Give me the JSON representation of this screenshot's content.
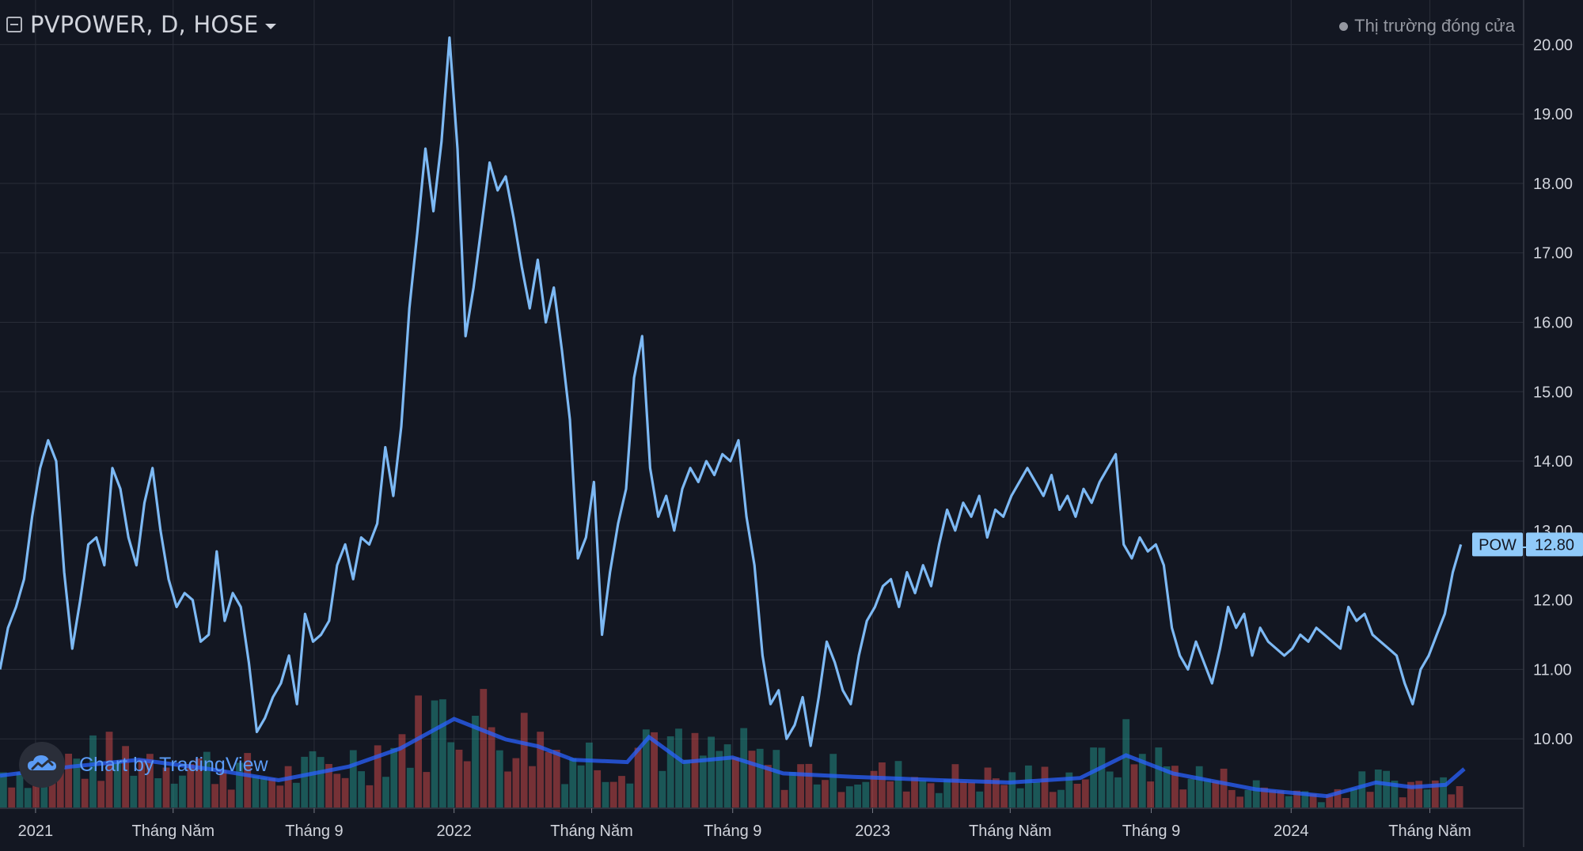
{
  "header": {
    "symbol_title": "PVPOWER, D, HOSE",
    "market_status": "Thị trường đóng cửa"
  },
  "watermark": {
    "text": "Chart by TradingView"
  },
  "colors": {
    "background": "#131722",
    "grid": "#2a2e39",
    "price_line": "#7db9f4",
    "volume_up": "#26a69a",
    "volume_down": "#ef5350",
    "volume_ma": "#2962ff",
    "label_bg": "#90caf9"
  },
  "icons": {
    "collapse": "collapse-square-icon",
    "dropdown": "caret-down-icon",
    "status": "status-dot-icon",
    "logo": "tradingview-cloud-icon"
  },
  "chart_data": {
    "type": "line",
    "title": "PVPOWER, D, HOSE",
    "xlabel": "",
    "ylabel": "",
    "x_range": [
      "2020-12-01",
      "2024-05-31"
    ],
    "ylim": [
      9.0,
      20.3
    ],
    "y_ticks": [
      "10.00",
      "11.00",
      "12.00",
      "13.00",
      "14.00",
      "15.00",
      "16.00",
      "17.00",
      "18.00",
      "19.00",
      "20.00"
    ],
    "x_ticks": [
      {
        "label": "2021",
        "date": "2021-01-01"
      },
      {
        "label": "Tháng Năm",
        "date": "2021-05-01"
      },
      {
        "label": "Tháng 9",
        "date": "2021-09-01"
      },
      {
        "label": "2022",
        "date": "2022-01-01"
      },
      {
        "label": "Tháng Năm",
        "date": "2022-05-01"
      },
      {
        "label": "Tháng 9",
        "date": "2022-09-01"
      },
      {
        "label": "2023",
        "date": "2023-01-01"
      },
      {
        "label": "Tháng Năm",
        "date": "2023-05-01"
      },
      {
        "label": "Tháng 9",
        "date": "2023-09-01"
      },
      {
        "label": "2024",
        "date": "2024-01-01"
      },
      {
        "label": "Tháng Năm",
        "date": "2024-05-01"
      }
    ],
    "grid": true,
    "price_label": {
      "symbol": "POW",
      "value": "12.80"
    },
    "series": [
      {
        "type": "line",
        "points": [
          [
            "2020-12-01",
            11.0
          ],
          [
            "2020-12-08",
            11.6
          ],
          [
            "2020-12-15",
            11.9
          ],
          [
            "2020-12-22",
            12.3
          ],
          [
            "2020-12-29",
            13.2
          ],
          [
            "2021-01-05",
            13.9
          ],
          [
            "2021-01-12",
            14.3
          ],
          [
            "2021-01-19",
            14.0
          ],
          [
            "2021-01-26",
            12.4
          ],
          [
            "2021-02-02",
            11.3
          ],
          [
            "2021-02-09",
            12.0
          ],
          [
            "2021-02-16",
            12.8
          ],
          [
            "2021-02-23",
            12.9
          ],
          [
            "2021-03-02",
            12.5
          ],
          [
            "2021-03-09",
            13.9
          ],
          [
            "2021-03-16",
            13.6
          ],
          [
            "2021-03-23",
            12.9
          ],
          [
            "2021-03-30",
            12.5
          ],
          [
            "2021-04-06",
            13.4
          ],
          [
            "2021-04-13",
            13.9
          ],
          [
            "2021-04-20",
            13.0
          ],
          [
            "2021-04-27",
            12.3
          ],
          [
            "2021-05-04",
            11.9
          ],
          [
            "2021-05-11",
            12.1
          ],
          [
            "2021-05-18",
            12.0
          ],
          [
            "2021-05-25",
            11.4
          ],
          [
            "2021-06-01",
            11.5
          ],
          [
            "2021-06-08",
            12.7
          ],
          [
            "2021-06-15",
            11.7
          ],
          [
            "2021-06-22",
            12.1
          ],
          [
            "2021-06-29",
            11.9
          ],
          [
            "2021-07-06",
            11.1
          ],
          [
            "2021-07-13",
            10.1
          ],
          [
            "2021-07-20",
            10.3
          ],
          [
            "2021-07-27",
            10.6
          ],
          [
            "2021-08-03",
            10.8
          ],
          [
            "2021-08-10",
            11.2
          ],
          [
            "2021-08-17",
            10.5
          ],
          [
            "2021-08-24",
            11.8
          ],
          [
            "2021-08-31",
            11.4
          ],
          [
            "2021-09-07",
            11.5
          ],
          [
            "2021-09-14",
            11.7
          ],
          [
            "2021-09-21",
            12.5
          ],
          [
            "2021-09-28",
            12.8
          ],
          [
            "2021-10-05",
            12.3
          ],
          [
            "2021-10-12",
            12.9
          ],
          [
            "2021-10-19",
            12.8
          ],
          [
            "2021-10-26",
            13.1
          ],
          [
            "2021-11-02",
            14.2
          ],
          [
            "2021-11-09",
            13.5
          ],
          [
            "2021-11-16",
            14.5
          ],
          [
            "2021-11-23",
            16.2
          ],
          [
            "2021-11-30",
            17.3
          ],
          [
            "2021-12-07",
            18.5
          ],
          [
            "2021-12-14",
            17.6
          ],
          [
            "2021-12-21",
            18.6
          ],
          [
            "2021-12-28",
            20.1
          ],
          [
            "2022-01-04",
            18.5
          ],
          [
            "2022-01-11",
            15.8
          ],
          [
            "2022-01-18",
            16.5
          ],
          [
            "2022-01-25",
            17.4
          ],
          [
            "2022-02-01",
            18.3
          ],
          [
            "2022-02-08",
            17.9
          ],
          [
            "2022-02-15",
            18.1
          ],
          [
            "2022-02-22",
            17.5
          ],
          [
            "2022-03-01",
            16.8
          ],
          [
            "2022-03-08",
            16.2
          ],
          [
            "2022-03-15",
            16.9
          ],
          [
            "2022-03-22",
            16.0
          ],
          [
            "2022-03-29",
            16.5
          ],
          [
            "2022-04-05",
            15.6
          ],
          [
            "2022-04-12",
            14.6
          ],
          [
            "2022-04-19",
            12.6
          ],
          [
            "2022-04-26",
            12.9
          ],
          [
            "2022-05-03",
            13.7
          ],
          [
            "2022-05-10",
            11.5
          ],
          [
            "2022-05-17",
            12.4
          ],
          [
            "2022-05-24",
            13.1
          ],
          [
            "2022-05-31",
            13.6
          ],
          [
            "2022-06-07",
            15.2
          ],
          [
            "2022-06-14",
            15.8
          ],
          [
            "2022-06-21",
            13.9
          ],
          [
            "2022-06-28",
            13.2
          ],
          [
            "2022-07-05",
            13.5
          ],
          [
            "2022-07-12",
            13.0
          ],
          [
            "2022-07-19",
            13.6
          ],
          [
            "2022-07-26",
            13.9
          ],
          [
            "2022-08-02",
            13.7
          ],
          [
            "2022-08-09",
            14.0
          ],
          [
            "2022-08-16",
            13.8
          ],
          [
            "2022-08-23",
            14.1
          ],
          [
            "2022-08-30",
            14.0
          ],
          [
            "2022-09-06",
            14.3
          ],
          [
            "2022-09-13",
            13.2
          ],
          [
            "2022-09-20",
            12.5
          ],
          [
            "2022-09-27",
            11.2
          ],
          [
            "2022-10-04",
            10.5
          ],
          [
            "2022-10-11",
            10.7
          ],
          [
            "2022-10-18",
            10.0
          ],
          [
            "2022-10-25",
            10.2
          ],
          [
            "2022-11-01",
            10.6
          ],
          [
            "2022-11-08",
            9.9
          ],
          [
            "2022-11-15",
            10.6
          ],
          [
            "2022-11-22",
            11.4
          ],
          [
            "2022-11-29",
            11.1
          ],
          [
            "2022-12-06",
            10.7
          ],
          [
            "2022-12-13",
            10.5
          ],
          [
            "2022-12-20",
            11.2
          ],
          [
            "2022-12-27",
            11.7
          ],
          [
            "2023-01-03",
            11.9
          ],
          [
            "2023-01-10",
            12.2
          ],
          [
            "2023-01-17",
            12.3
          ],
          [
            "2023-01-24",
            11.9
          ],
          [
            "2023-01-31",
            12.4
          ],
          [
            "2023-02-07",
            12.1
          ],
          [
            "2023-02-14",
            12.5
          ],
          [
            "2023-02-21",
            12.2
          ],
          [
            "2023-02-28",
            12.8
          ],
          [
            "2023-03-07",
            13.3
          ],
          [
            "2023-03-14",
            13.0
          ],
          [
            "2023-03-21",
            13.4
          ],
          [
            "2023-03-28",
            13.2
          ],
          [
            "2023-04-04",
            13.5
          ],
          [
            "2023-04-11",
            12.9
          ],
          [
            "2023-04-18",
            13.3
          ],
          [
            "2023-04-25",
            13.2
          ],
          [
            "2023-05-02",
            13.5
          ],
          [
            "2023-05-09",
            13.7
          ],
          [
            "2023-05-16",
            13.9
          ],
          [
            "2023-05-23",
            13.7
          ],
          [
            "2023-05-30",
            13.5
          ],
          [
            "2023-06-06",
            13.8
          ],
          [
            "2023-06-13",
            13.3
          ],
          [
            "2023-06-20",
            13.5
          ],
          [
            "2023-06-27",
            13.2
          ],
          [
            "2023-07-04",
            13.6
          ],
          [
            "2023-07-11",
            13.4
          ],
          [
            "2023-07-18",
            13.7
          ],
          [
            "2023-07-25",
            13.9
          ],
          [
            "2023-08-01",
            14.1
          ],
          [
            "2023-08-08",
            12.8
          ],
          [
            "2023-08-15",
            12.6
          ],
          [
            "2023-08-22",
            12.9
          ],
          [
            "2023-08-29",
            12.7
          ],
          [
            "2023-09-05",
            12.8
          ],
          [
            "2023-09-12",
            12.5
          ],
          [
            "2023-09-19",
            11.6
          ],
          [
            "2023-09-26",
            11.2
          ],
          [
            "2023-10-03",
            11.0
          ],
          [
            "2023-10-10",
            11.4
          ],
          [
            "2023-10-17",
            11.1
          ],
          [
            "2023-10-24",
            10.8
          ],
          [
            "2023-10-31",
            11.3
          ],
          [
            "2023-11-07",
            11.9
          ],
          [
            "2023-11-14",
            11.6
          ],
          [
            "2023-11-21",
            11.8
          ],
          [
            "2023-11-28",
            11.2
          ],
          [
            "2023-12-05",
            11.6
          ],
          [
            "2023-12-12",
            11.4
          ],
          [
            "2023-12-19",
            11.3
          ],
          [
            "2023-12-26",
            11.2
          ],
          [
            "2024-01-02",
            11.3
          ],
          [
            "2024-01-09",
            11.5
          ],
          [
            "2024-01-16",
            11.4
          ],
          [
            "2024-01-23",
            11.6
          ],
          [
            "2024-01-30",
            11.5
          ],
          [
            "2024-02-06",
            11.4
          ],
          [
            "2024-02-13",
            11.3
          ],
          [
            "2024-02-20",
            11.9
          ],
          [
            "2024-02-27",
            11.7
          ],
          [
            "2024-03-05",
            11.8
          ],
          [
            "2024-03-12",
            11.5
          ],
          [
            "2024-03-19",
            11.4
          ],
          [
            "2024-03-26",
            11.3
          ],
          [
            "2024-04-02",
            11.2
          ],
          [
            "2024-04-09",
            10.8
          ],
          [
            "2024-04-16",
            10.5
          ],
          [
            "2024-04-23",
            11.0
          ],
          [
            "2024-04-30",
            11.2
          ],
          [
            "2024-05-07",
            11.5
          ],
          [
            "2024-05-14",
            11.8
          ],
          [
            "2024-05-21",
            12.4
          ],
          [
            "2024-05-28",
            12.8
          ]
        ]
      }
    ],
    "volume": {
      "bar_count": 180,
      "ma_points": [
        [
          "2020-12-01",
          0.28
        ],
        [
          "2021-02-01",
          0.36
        ],
        [
          "2021-04-01",
          0.42
        ],
        [
          "2021-06-01",
          0.34
        ],
        [
          "2021-08-01",
          0.24
        ],
        [
          "2021-10-01",
          0.36
        ],
        [
          "2021-11-15",
          0.52
        ],
        [
          "2022-01-01",
          0.78
        ],
        [
          "2022-02-15",
          0.6
        ],
        [
          "2022-03-15",
          0.54
        ],
        [
          "2022-04-15",
          0.42
        ],
        [
          "2022-06-01",
          0.4
        ],
        [
          "2022-06-20",
          0.62
        ],
        [
          "2022-07-20",
          0.4
        ],
        [
          "2022-09-01",
          0.44
        ],
        [
          "2022-10-15",
          0.3
        ],
        [
          "2022-12-15",
          0.27
        ],
        [
          "2023-03-01",
          0.24
        ],
        [
          "2023-05-01",
          0.22
        ],
        [
          "2023-07-01",
          0.26
        ],
        [
          "2023-08-10",
          0.46
        ],
        [
          "2023-09-20",
          0.3
        ],
        [
          "2023-12-01",
          0.16
        ],
        [
          "2024-02-01",
          0.1
        ],
        [
          "2024-03-15",
          0.22
        ],
        [
          "2024-04-15",
          0.18
        ],
        [
          "2024-05-15",
          0.2
        ],
        [
          "2024-05-31",
          0.34
        ]
      ]
    }
  }
}
